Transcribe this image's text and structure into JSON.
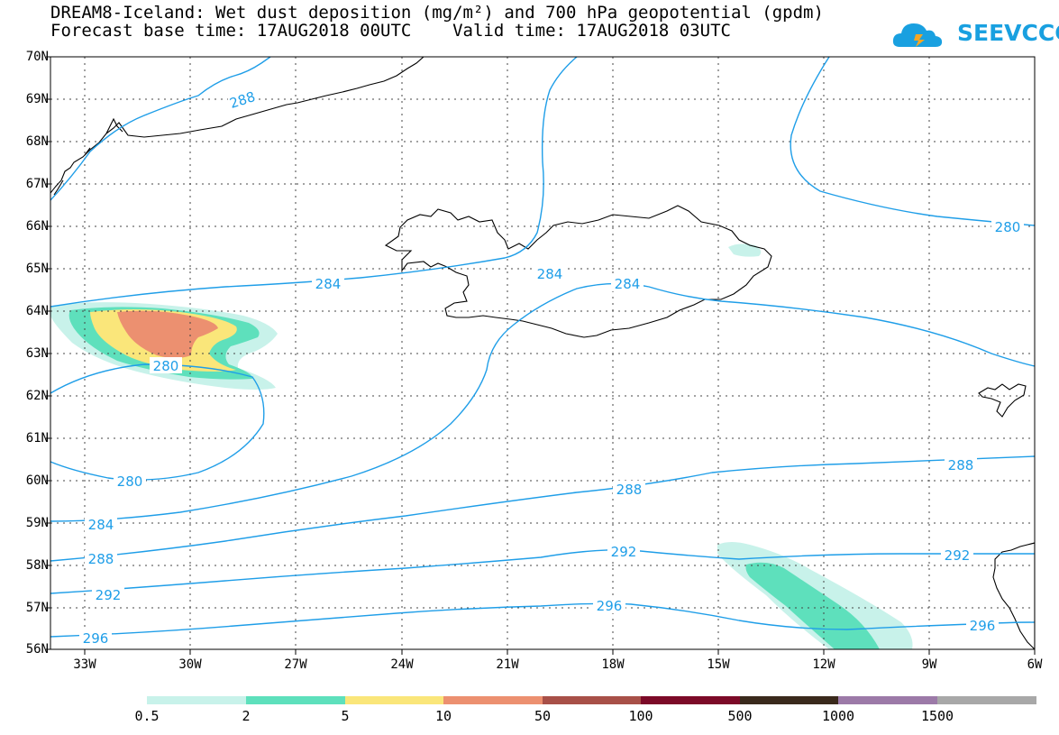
{
  "title": {
    "line1": "DREAM8-Iceland: Wet dust deposition (mg/m²) and 700 hPa geopotential (gpdm)",
    "line2": "Forecast base time: 17AUG2018 00UTC    Valid time: 17AUG2018 03UTC"
  },
  "logo": {
    "text": "SEEVCCC",
    "color": "#19a0e0"
  },
  "axes": {
    "lat_labels": [
      "70N",
      "69N",
      "68N",
      "67N",
      "66N",
      "65N",
      "64N",
      "63N",
      "62N",
      "61N",
      "60N",
      "59N",
      "58N",
      "57N",
      "56N"
    ],
    "lon_labels": [
      "33W",
      "30W",
      "27W",
      "24W",
      "21W",
      "18W",
      "15W",
      "12W",
      "9W",
      "6W"
    ],
    "lat_range": [
      56,
      70
    ],
    "lon_range": [
      -34.2,
      -6
    ],
    "grid": "dotted"
  },
  "contours": {
    "color": "#1f9ee8",
    "labels": [
      "288",
      "280",
      "284",
      "284",
      "284",
      "280",
      "280",
      "284",
      "288",
      "288",
      "288",
      "292",
      "292",
      "292",
      "296",
      "296",
      "296"
    ]
  },
  "legend": {
    "labels": [
      "0.5",
      "2",
      "5",
      "10",
      "50",
      "100",
      "500",
      "1000",
      "1500"
    ],
    "colors": [
      "#c8f2ea",
      "#5ee0bc",
      "#fae67a",
      "#ec9070",
      "#a85048",
      "#7c0a28",
      "#3a2a1c",
      "#9c7aa8",
      "#a8a8a8"
    ]
  },
  "dust_colors": {
    "level1": "#c8f2ea",
    "level2": "#5ee0bc",
    "level3": "#fae67a",
    "level4": "#ec9070"
  }
}
